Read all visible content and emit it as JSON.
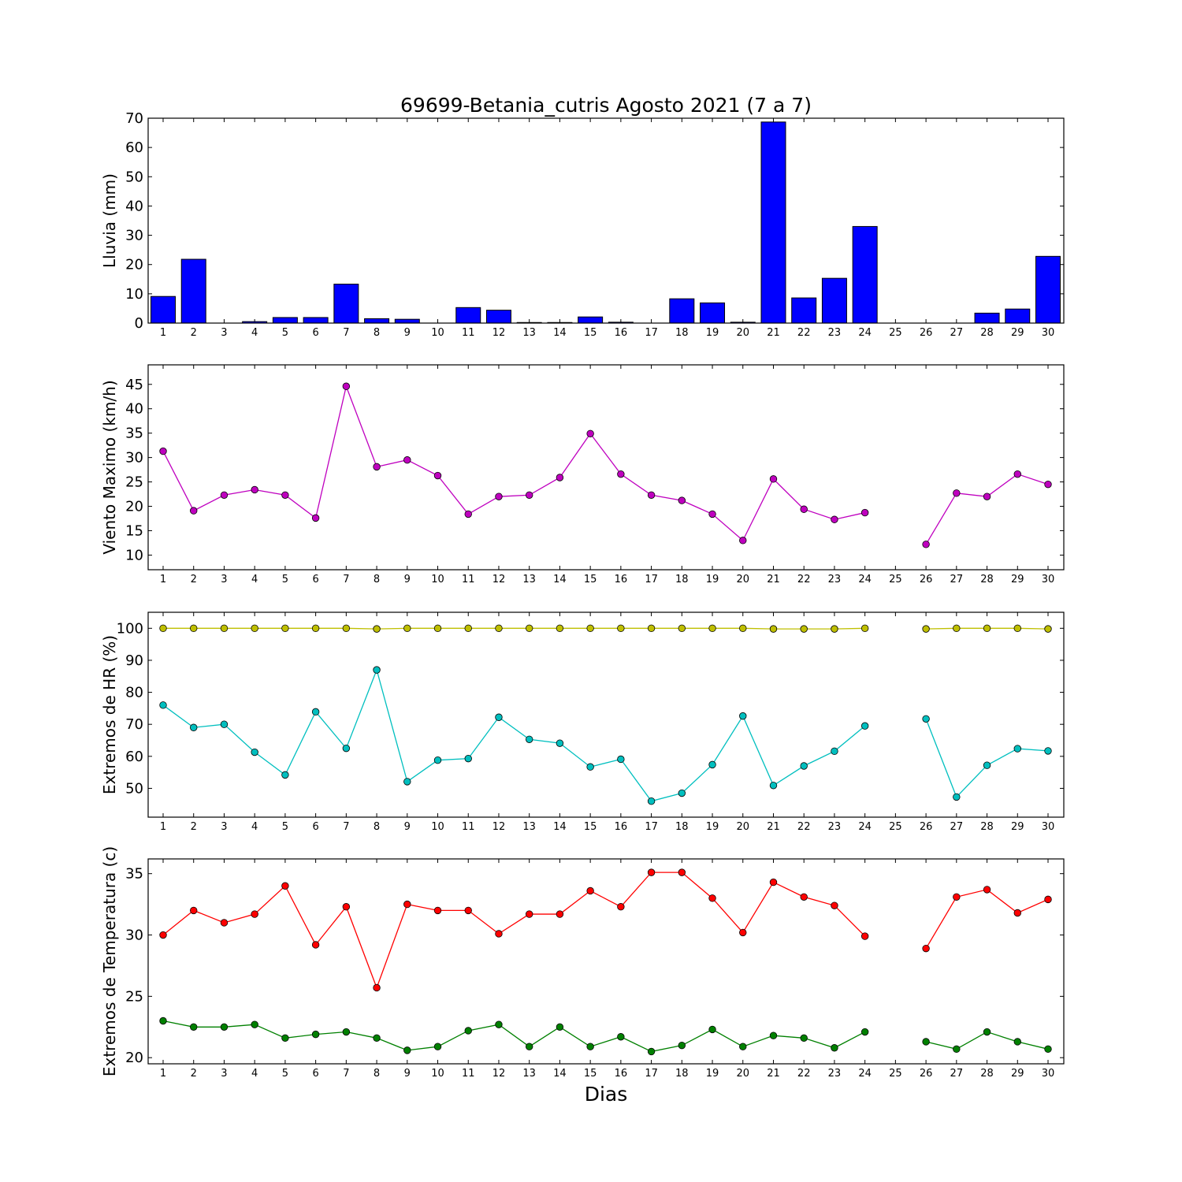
{
  "title": "69699-Betania_cutris Agosto 2021  (7 a 7)",
  "xlabel": "Dias",
  "days": [
    "1",
    "2",
    "3",
    "4",
    "5",
    "6",
    "7",
    "8",
    "9",
    "10",
    "11",
    "12",
    "13",
    "14",
    "15",
    "16",
    "17",
    "18",
    "19",
    "20",
    "21",
    "22",
    "23",
    "24",
    "25",
    "26",
    "27",
    "28",
    "29",
    "30"
  ],
  "chart_data": [
    {
      "type": "bar",
      "ylabel": "Lluvia (mm)",
      "ylim": [
        0,
        70
      ],
      "yticks": [
        0,
        10,
        20,
        30,
        40,
        50,
        60,
        70
      ],
      "categories": [
        1,
        2,
        3,
        4,
        5,
        6,
        7,
        8,
        9,
        10,
        11,
        12,
        13,
        14,
        15,
        16,
        17,
        18,
        19,
        20,
        21,
        22,
        23,
        24,
        25,
        26,
        27,
        28,
        29,
        30
      ],
      "series": [
        {
          "color": "#0000ff",
          "values": [
            9.1,
            21.8,
            0,
            0.5,
            1.9,
            1.9,
            13.3,
            1.5,
            1.3,
            0,
            5.3,
            4.4,
            0.2,
            0.2,
            2.1,
            0.3,
            0,
            8.3,
            6.9,
            0.3,
            68.7,
            8.6,
            15.3,
            33.0,
            0,
            0,
            0,
            3.4,
            4.8,
            22.8
          ]
        }
      ]
    },
    {
      "type": "line",
      "ylabel": "Viento Maximo (km/h)",
      "ylim": [
        7,
        49
      ],
      "yticks": [
        10,
        15,
        20,
        25,
        30,
        35,
        40,
        45
      ],
      "x": [
        1,
        2,
        3,
        4,
        5,
        6,
        7,
        8,
        9,
        10,
        11,
        12,
        13,
        14,
        15,
        16,
        17,
        18,
        19,
        20,
        21,
        22,
        23,
        24,
        25,
        26,
        27,
        28,
        29,
        30
      ],
      "series": [
        {
          "color": "#bf00bf",
          "values": [
            31.3,
            19.1,
            22.3,
            23.4,
            22.3,
            17.6,
            44.6,
            28.1,
            29.5,
            26.3,
            18.4,
            22.0,
            22.3,
            25.9,
            34.9,
            26.6,
            22.3,
            21.2,
            18.4,
            13.0,
            25.6,
            19.4,
            17.3,
            18.7,
            null,
            12.2,
            22.7,
            22.0,
            26.6,
            24.5
          ]
        }
      ]
    },
    {
      "type": "line",
      "ylabel": "Extremos de HR (%)",
      "ylim": [
        41,
        105
      ],
      "yticks": [
        50,
        60,
        70,
        80,
        90,
        100
      ],
      "x": [
        1,
        2,
        3,
        4,
        5,
        6,
        7,
        8,
        9,
        10,
        11,
        12,
        13,
        14,
        15,
        16,
        17,
        18,
        19,
        20,
        21,
        22,
        23,
        24,
        25,
        26,
        27,
        28,
        29,
        30
      ],
      "series": [
        {
          "color": "#bfbf00",
          "values": [
            100,
            100,
            100,
            100,
            100,
            100,
            100,
            99.8,
            100,
            100,
            100,
            100,
            100,
            100,
            100,
            100,
            100,
            100,
            100,
            100,
            99.8,
            99.8,
            99.8,
            100,
            null,
            99.8,
            100,
            100,
            100,
            99.8
          ]
        },
        {
          "color": "#00bfbf",
          "values": [
            76,
            69,
            70,
            61.3,
            54.2,
            73.9,
            62.5,
            87,
            52.1,
            58.8,
            59.3,
            72.2,
            65.3,
            64.1,
            56.7,
            59.1,
            46,
            48.5,
            57.4,
            72.6,
            50.9,
            57,
            61.6,
            69.5,
            null,
            71.7,
            47.3,
            57.2,
            62.4,
            61.7
          ]
        }
      ]
    },
    {
      "type": "line",
      "ylabel": "Extremos de Temperatura (c)",
      "ylim": [
        19.5,
        36.2
      ],
      "yticks": [
        20,
        25,
        30,
        35
      ],
      "x": [
        1,
        2,
        3,
        4,
        5,
        6,
        7,
        8,
        9,
        10,
        11,
        12,
        13,
        14,
        15,
        16,
        17,
        18,
        19,
        20,
        21,
        22,
        23,
        24,
        25,
        26,
        27,
        28,
        29,
        30
      ],
      "series": [
        {
          "color": "#ff0000",
          "values": [
            30.0,
            32.0,
            31.0,
            31.7,
            34.0,
            29.2,
            32.3,
            25.7,
            32.5,
            32.0,
            32.0,
            30.1,
            31.7,
            31.7,
            33.6,
            32.3,
            35.1,
            35.1,
            33.0,
            30.2,
            34.3,
            33.1,
            32.4,
            29.9,
            null,
            28.9,
            33.1,
            33.7,
            31.8,
            32.9
          ]
        },
        {
          "color": "#008000",
          "values": [
            23.0,
            22.5,
            22.5,
            22.7,
            21.6,
            21.9,
            22.1,
            21.6,
            20.6,
            20.9,
            22.2,
            22.7,
            20.9,
            22.5,
            20.9,
            21.7,
            20.5,
            21.0,
            22.3,
            20.9,
            21.8,
            21.6,
            20.8,
            22.1,
            null,
            21.3,
            20.7,
            22.1,
            21.3,
            20.7
          ]
        }
      ]
    }
  ]
}
